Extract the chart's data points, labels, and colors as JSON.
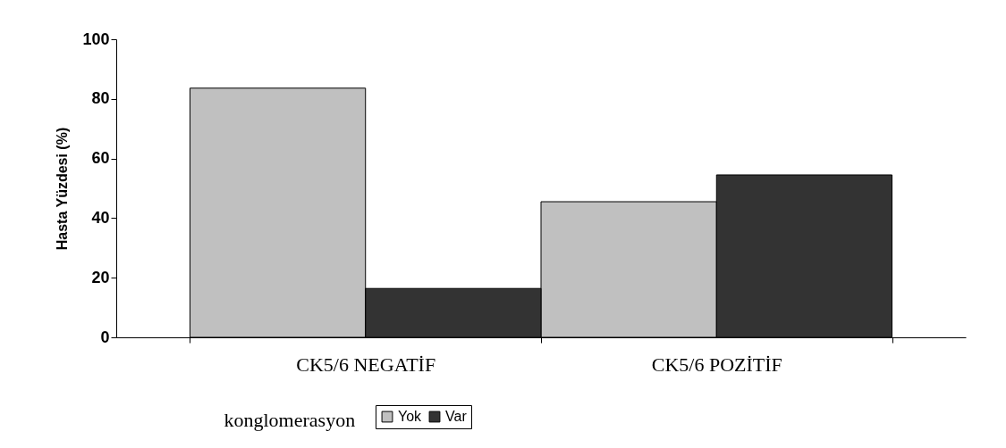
{
  "chart_data": {
    "type": "bar",
    "xlabel": "konglomerasyon",
    "ylabel": "Hasta Yüzdesi (%)",
    "categories": [
      "CK5/6 NEGATİF",
      "CK5/6 POZİTİF"
    ],
    "series": [
      {
        "name": "Yok",
        "color": "#c0c0c0",
        "values": [
          83.6,
          45.5
        ]
      },
      {
        "name": "Var",
        "color": "#333333",
        "values": [
          16.4,
          54.5
        ]
      }
    ],
    "ylim": [
      0,
      100
    ],
    "yticks": [
      0,
      20,
      40,
      60,
      80,
      100
    ],
    "grid": false,
    "legend": "bottom"
  }
}
